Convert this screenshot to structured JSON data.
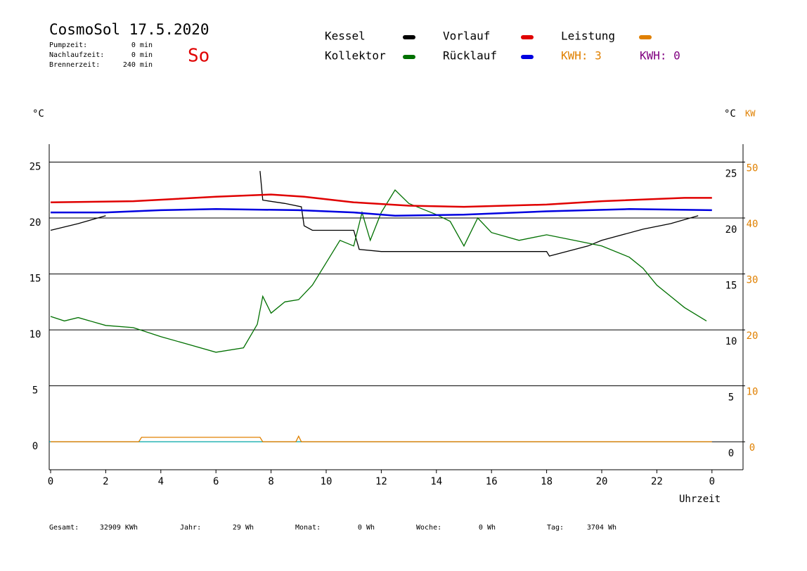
{
  "header": {
    "title": "CosmoSol 17.5.2020",
    "day": "So",
    "info": [
      [
        "Pumpzeit:",
        "0 min"
      ],
      [
        "Nachlaufzeit:",
        "0 min"
      ],
      [
        "Brennerzeit:",
        "240 min"
      ]
    ],
    "kwh": [
      {
        "text": "KWH: 3",
        "color": "#e08000"
      },
      {
        "text": "KWH: 0",
        "color": "#800080"
      }
    ]
  },
  "chart_data": {
    "type": "line",
    "y_unit": "°C",
    "y2_unit_left": "°C",
    "y2_unit": "KW",
    "xlabel": "Uhrzeit",
    "xlim": [
      0,
      25
    ],
    "xticks": [
      0,
      2,
      4,
      6,
      8,
      10,
      12,
      14,
      16,
      18,
      20,
      22,
      {
        "value": 24,
        "label": "0"
      }
    ],
    "ylim": [
      -2.5,
      26.6
    ],
    "yticks": [
      0,
      5,
      10,
      15,
      20,
      25
    ],
    "y2lim": [
      -5,
      53.2
    ],
    "y2ticks": [
      0,
      10,
      20,
      30,
      40,
      50
    ],
    "grid": true,
    "series": [
      {
        "name": "Kessel",
        "color": "#000000",
        "x": [
          0,
          1,
          2,
          3.4,
          7.6,
          7.7,
          8.5,
          9.1,
          9.2,
          9.5,
          11,
          11.2,
          12,
          18,
          18.1,
          19.5,
          20,
          21.5,
          22.5,
          23.5
        ],
        "values": [
          18.9,
          19.5,
          20.2,
          null,
          24.2,
          21.6,
          21.3,
          21,
          19.3,
          18.9,
          18.9,
          17.2,
          17,
          17,
          16.6,
          17.5,
          18,
          19,
          19.5,
          20.2
        ]
      },
      {
        "name": "Kollektor",
        "color": "#007000",
        "x": [
          0,
          0.5,
          1,
          2,
          3,
          4,
          5,
          6,
          7,
          7.5,
          7.7,
          8,
          8.5,
          9,
          9.5,
          10,
          10.5,
          11,
          11.3,
          11.6,
          12,
          12.5,
          13,
          13.5,
          14,
          14.5,
          15,
          15.5,
          16,
          17,
          18,
          19,
          20,
          21,
          21.5,
          22,
          22.5,
          23,
          23.8
        ],
        "values": [
          11.2,
          10.8,
          11.1,
          10.4,
          10.2,
          9.4,
          8.7,
          8,
          8.4,
          10.5,
          13,
          11.5,
          12.5,
          12.7,
          14,
          16,
          18,
          17.5,
          20.5,
          18,
          20.5,
          22.5,
          21.3,
          20.8,
          20.3,
          19.7,
          17.5,
          20,
          18.7,
          18,
          18.5,
          18,
          17.5,
          16.5,
          15.5,
          14,
          13,
          12,
          10.8
        ]
      },
      {
        "name": "Vorlauf",
        "color": "#e00000",
        "x": [
          0,
          3,
          6,
          8,
          9.2,
          11,
          13,
          15,
          18,
          20,
          23,
          24
        ],
        "values": [
          21.4,
          21.5,
          21.9,
          22.1,
          21.9,
          21.4,
          21.1,
          21,
          21.2,
          21.5,
          21.8,
          21.8
        ]
      },
      {
        "name": "Rücklauf",
        "color": "#0000e0",
        "x": [
          0,
          2,
          4,
          6,
          9,
          11,
          12.5,
          15,
          18,
          21,
          24
        ],
        "values": [
          20.5,
          20.5,
          20.7,
          20.8,
          20.7,
          20.5,
          20.2,
          20.3,
          20.6,
          20.8,
          20.7
        ]
      },
      {
        "name": "Leistung",
        "color": "#e08000",
        "axis": "y2",
        "x": [
          0,
          3.2,
          3.3,
          7.6,
          7.7,
          8.9,
          9,
          9.1,
          24
        ],
        "values": [
          0,
          0,
          0.8,
          0.8,
          0,
          0,
          1,
          0,
          0
        ]
      }
    ]
  },
  "footer": [
    [
      "Gesamt:",
      "32909 KWh"
    ],
    [
      "Jahr:",
      "29 Wh"
    ],
    [
      "Monat:",
      "0 Wh"
    ],
    [
      "Woche:",
      "0 Wh"
    ],
    [
      "Tag:",
      "3704 Wh"
    ]
  ]
}
